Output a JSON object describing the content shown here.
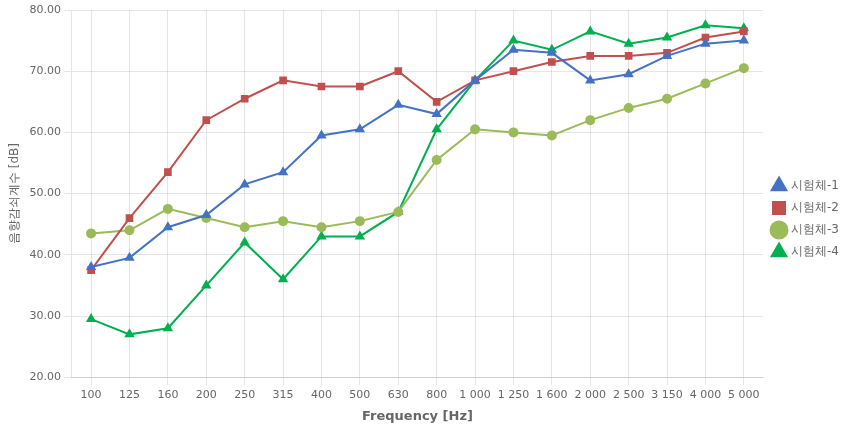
{
  "chart_data": {
    "type": "line",
    "categories": [
      "100",
      "125",
      "160",
      "200",
      "250",
      "315",
      "400",
      "500",
      "630",
      "800",
      "1 000",
      "1 250",
      "1 600",
      "2 000",
      "2 500",
      "3 150",
      "4 000",
      "5 000"
    ],
    "series": [
      {
        "name": "시험체-1",
        "color": "#4472C4",
        "marker": "triangle",
        "values": [
          38.0,
          39.5,
          44.5,
          46.5,
          51.5,
          53.5,
          59.5,
          60.5,
          64.5,
          63.0,
          68.5,
          73.5,
          73.0,
          68.5,
          69.5,
          72.5,
          74.5,
          75.0
        ]
      },
      {
        "name": "시험체-2",
        "color": "#C0504D",
        "marker": "square",
        "values": [
          37.5,
          46.0,
          53.5,
          62.0,
          65.5,
          68.5,
          67.5,
          67.5,
          70.0,
          65.0,
          68.5,
          70.0,
          71.5,
          72.5,
          72.5,
          73.0,
          75.5,
          76.5
        ]
      },
      {
        "name": "시험체-3",
        "color": "#9BBB59",
        "marker": "circle",
        "values": [
          43.5,
          44.0,
          47.5,
          46.0,
          44.5,
          45.5,
          44.5,
          45.5,
          47.0,
          55.5,
          60.5,
          60.0,
          59.5,
          62.0,
          64.0,
          65.5,
          68.0,
          70.5
        ]
      },
      {
        "name": "시험체-4",
        "color": "#00B050",
        "marker": "triangle",
        "values": [
          29.5,
          27.0,
          28.0,
          35.0,
          42.0,
          36.0,
          43.0,
          43.0,
          47.0,
          60.5,
          68.5,
          75.0,
          73.5,
          76.5,
          74.5,
          75.5,
          77.5,
          77.0
        ]
      }
    ],
    "xlabel": "Frequency [Hz]",
    "ylabel": "음향감쇠계수 [dB]",
    "ylim": [
      20,
      80
    ],
    "yticks": [
      {
        "value": 20,
        "label": "20.00"
      },
      {
        "value": 30,
        "label": "30.00"
      },
      {
        "value": 40,
        "label": "40.00"
      },
      {
        "value": 50,
        "label": "50.00"
      },
      {
        "value": 60,
        "label": "60.00"
      },
      {
        "value": 70,
        "label": "70.00"
      },
      {
        "value": 80,
        "label": "80.00"
      }
    ],
    "grid": true,
    "legend": "right"
  }
}
